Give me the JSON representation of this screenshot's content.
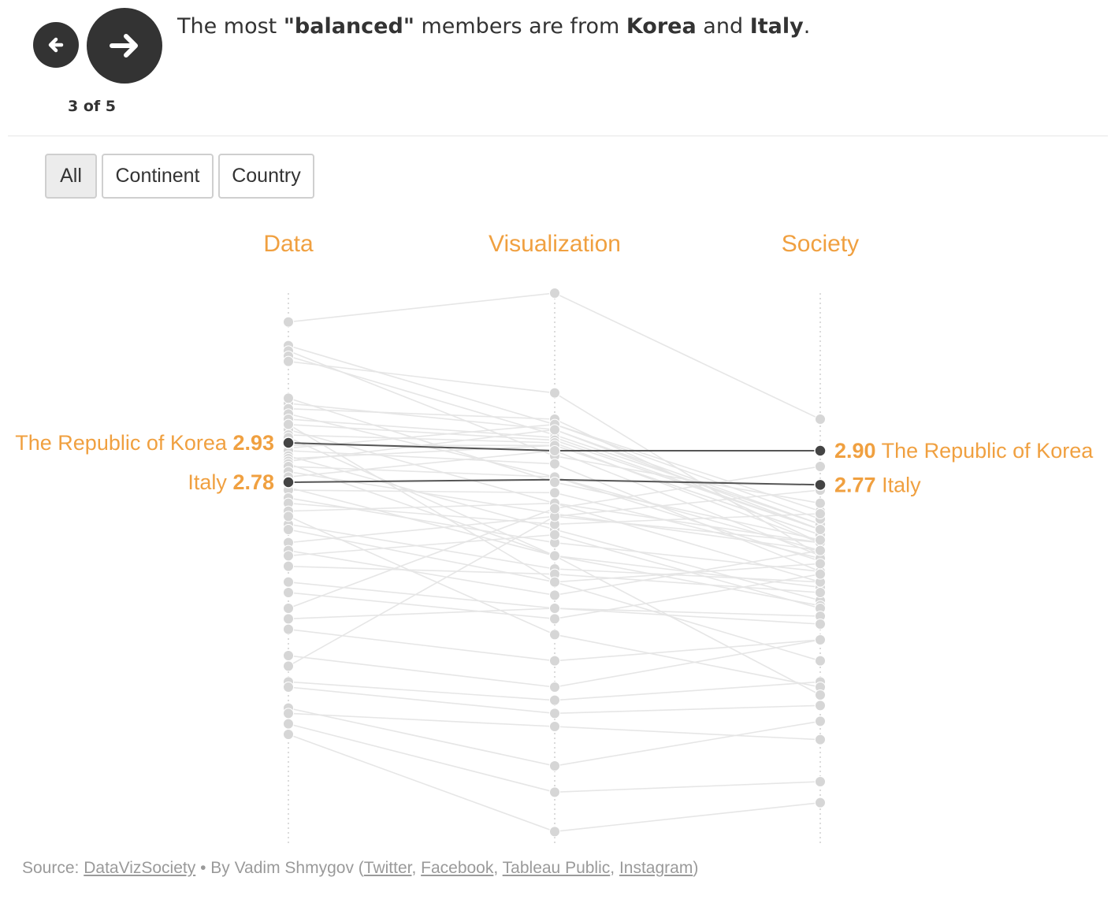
{
  "navigation": {
    "prev_icon": "arrow-left-icon",
    "next_icon": "arrow-right-icon",
    "step_label": "3 of 5"
  },
  "caption": {
    "part1": "The most ",
    "bold1": "\"balanced\"",
    "part2": " members are from ",
    "bold2": "Korea",
    "part3": " and ",
    "bold3": "Italy",
    "part4": "."
  },
  "filters": {
    "all": "All",
    "continent": "Continent",
    "country": "Country",
    "active": "All"
  },
  "colors": {
    "accent": "#f0a040",
    "highlight_line": "#555555",
    "background_line": "#e6e6e6",
    "background_dot": "#d6d6d6",
    "nav_button": "#333333"
  },
  "chart_data": {
    "type": "line",
    "subtype": "parallel-coordinates",
    "axes": [
      "Data",
      "Visualization",
      "Society"
    ],
    "highlight_series": [
      {
        "name": "The Republic of Korea",
        "values": [
          2.93,
          2.9,
          2.9
        ],
        "data_label": "2.93",
        "end_label": "2.90"
      },
      {
        "name": "Italy",
        "values": [
          2.78,
          2.79,
          2.77
        ],
        "data_label": "2.78",
        "end_label": "2.77"
      }
    ],
    "background_series": [
      [
        3.39,
        3.5,
        3.02
      ],
      [
        3.3,
        3.0,
        2.67
      ],
      [
        3.28,
        2.88,
        2.7
      ],
      [
        3.26,
        2.96,
        2.62
      ],
      [
        3.24,
        3.12,
        2.5
      ],
      [
        3.08,
        2.98,
        2.62
      ],
      [
        3.06,
        3.02,
        2.55
      ],
      [
        3.04,
        2.8,
        2.48
      ],
      [
        3.02,
        2.95,
        2.6
      ],
      [
        3.0,
        2.94,
        2.6
      ],
      [
        2.98,
        2.7,
        2.4
      ],
      [
        2.96,
        2.93,
        2.55
      ],
      [
        2.92,
        2.92,
        2.58
      ],
      [
        2.91,
        3.0,
        2.64
      ],
      [
        2.9,
        2.85,
        2.44
      ],
      [
        2.88,
        2.6,
        2.33
      ],
      [
        2.87,
        2.92,
        2.58
      ],
      [
        2.86,
        2.98,
        2.6
      ],
      [
        2.85,
        2.5,
        2.38
      ],
      [
        2.84,
        2.8,
        2.52
      ],
      [
        2.82,
        2.66,
        2.52
      ],
      [
        2.8,
        2.9,
        2.5
      ],
      [
        2.76,
        2.5,
        2.31
      ],
      [
        2.75,
        2.74,
        2.49
      ],
      [
        2.72,
        2.55,
        2.44
      ],
      [
        2.7,
        2.62,
        2.66
      ],
      [
        2.67,
        2.7,
        2.55
      ],
      [
        2.62,
        2.45,
        2.4
      ],
      [
        2.6,
        2.4,
        2.47
      ],
      [
        2.55,
        2.65,
        2.55
      ],
      [
        2.52,
        2.35,
        2.52
      ],
      [
        2.5,
        2.58,
        2.3
      ],
      [
        2.46,
        2.43,
        2.36
      ],
      [
        2.4,
        2.3,
        2.27
      ],
      [
        2.36,
        2.26,
        2.43
      ],
      [
        2.26,
        2.3,
        2.24
      ],
      [
        2.22,
        2.1,
        2.18
      ],
      [
        2.12,
        2.0,
        2.18
      ],
      [
        2.08,
        2.65,
        2.75
      ],
      [
        2.02,
        1.95,
        2.02
      ],
      [
        2.0,
        1.9,
        1.93
      ],
      [
        1.92,
        1.7,
        1.87
      ],
      [
        1.9,
        1.85,
        1.8
      ],
      [
        1.86,
        1.6,
        1.64
      ],
      [
        1.82,
        1.45,
        1.56
      ],
      [
        3.1,
        2.78,
        2.56
      ],
      [
        3.0,
        2.4,
        2.1
      ],
      [
        2.65,
        2.2,
        2.0
      ],
      [
        2.95,
        2.5,
        1.97
      ],
      [
        2.3,
        2.68,
        2.84
      ]
    ],
    "y_domain": [
      1.4,
      3.5
    ]
  },
  "source": {
    "prefix": "Source: ",
    "link1": "DataVizSociety",
    "middle": " • By Vadim Shmygov (",
    "link2": "Twitter",
    "sep1": ", ",
    "link3": "Facebook",
    "sep2": ", ",
    "link4": "Tableau Public",
    "sep3": ", ",
    "link5": "Instagram",
    "suffix": ")"
  }
}
